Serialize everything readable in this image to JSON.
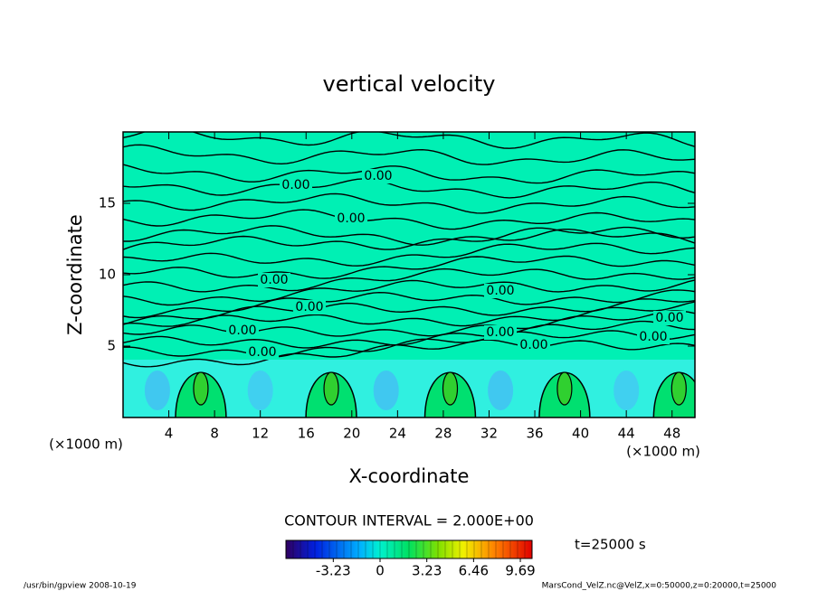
{
  "chart_data": {
    "type": "contour",
    "title": "vertical velocity",
    "x_label": "X-coordinate",
    "y_label": "Z-coordinate",
    "x_unit_label": "(×1000 m)",
    "xlim": [
      0,
      50
    ],
    "ylim": [
      0,
      20
    ],
    "xticks": [
      4,
      8,
      12,
      16,
      20,
      24,
      28,
      32,
      36,
      40,
      44,
      48
    ],
    "yticks": [
      5,
      10,
      15
    ],
    "contour_labels": [
      "0.00",
      "0.00",
      "0.00",
      "0.00",
      "0.00",
      "0.00",
      "0.00",
      "0.00",
      "0.00",
      "0.00",
      "0.00",
      "0.00"
    ],
    "contour_interval_label": "CONTOUR INTERVAL = 2.000E+00",
    "colorbar": {
      "lim": [
        -6.5,
        10.5
      ],
      "ticks": [
        -3.23,
        0,
        3.23,
        6.46,
        9.69
      ]
    },
    "time_label": "t=25000 s",
    "footer_left": "/usr/bin/gpview   2008-10-19",
    "footer_right": "MarsCond_VelZ.nc@VelZ,x=0:50000,z=0:20000,t=25000"
  }
}
